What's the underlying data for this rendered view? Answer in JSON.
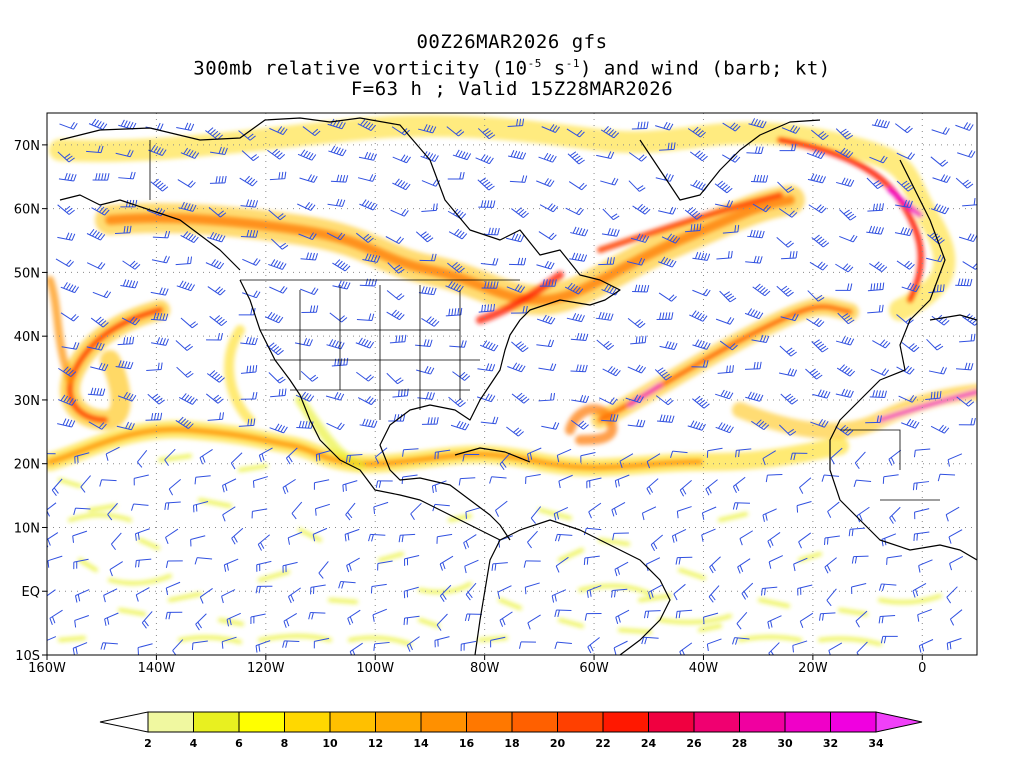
{
  "title": {
    "line1": "00Z26MAR2026 gfs",
    "line2_pre": "300mb relative vorticity (10",
    "line2_exp1": "-5",
    "line2_mid": " s",
    "line2_exp2": "-1",
    "line2_post": ") and wind (barb; kt)",
    "line3": "F=63 h ; Valid 15Z28MAR2026"
  },
  "map": {
    "lon_range": [
      -160,
      10
    ],
    "lat_range": [
      -10,
      75
    ],
    "lat_ticks": [
      {
        "value": 70,
        "label": "70N"
      },
      {
        "value": 60,
        "label": "60N"
      },
      {
        "value": 50,
        "label": "50N"
      },
      {
        "value": 40,
        "label": "40N"
      },
      {
        "value": 30,
        "label": "30N"
      },
      {
        "value": 20,
        "label": "20N"
      },
      {
        "value": 10,
        "label": "10N"
      },
      {
        "value": 0,
        "label": "EQ"
      },
      {
        "value": -10,
        "label": "10S"
      }
    ],
    "lon_ticks": [
      {
        "value": -160,
        "label": "160W"
      },
      {
        "value": -140,
        "label": "140W"
      },
      {
        "value": -120,
        "label": "120W"
      },
      {
        "value": -100,
        "label": "100W"
      },
      {
        "value": -80,
        "label": "80W"
      },
      {
        "value": -60,
        "label": "60W"
      },
      {
        "value": -40,
        "label": "40W"
      },
      {
        "value": -20,
        "label": "20W"
      },
      {
        "value": 0,
        "label": "0"
      }
    ],
    "grid": true,
    "barb_color": "#3050e0"
  },
  "colorbar": {
    "levels": [
      "2",
      "4",
      "6",
      "8",
      "10",
      "12",
      "14",
      "16",
      "18",
      "20",
      "22",
      "24",
      "26",
      "28",
      "30",
      "32",
      "34"
    ],
    "colors": [
      "#f0f8a0",
      "#e8f020",
      "#ffff00",
      "#ffd800",
      "#ffc000",
      "#ffa800",
      "#ff9000",
      "#ff7800",
      "#ff6000",
      "#ff4000",
      "#ff1800",
      "#f00040",
      "#f00070",
      "#f000a0",
      "#f000c8",
      "#f000e0",
      "#ff00ff",
      "#f040f8"
    ]
  }
}
